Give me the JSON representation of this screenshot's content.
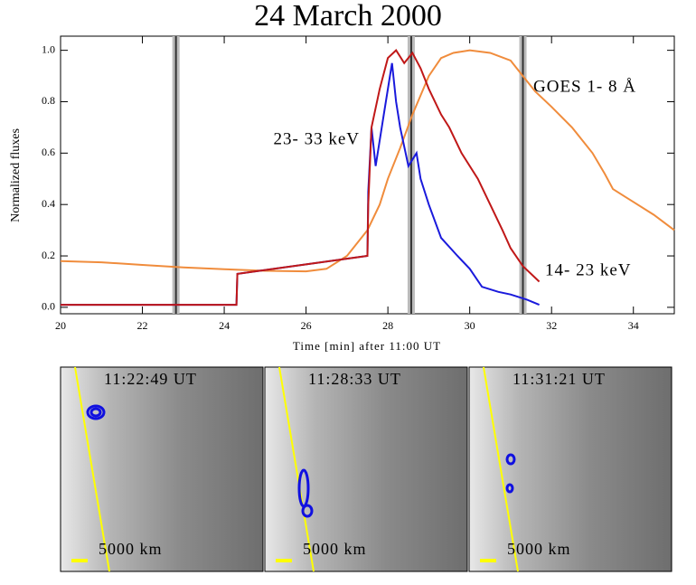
{
  "chart_data": {
    "type": "line",
    "title": "24 March 2000",
    "ylabel": "Normalized fluxes",
    "xlabel": "Time [min] after 11:00 UT",
    "xlim": [
      20,
      35
    ],
    "ylim": [
      -0.025,
      1.055
    ],
    "xticks": [
      20,
      22,
      24,
      26,
      28,
      30,
      32,
      34
    ],
    "yticks": [
      {
        "value": 0,
        "label": "0.0"
      },
      0.2,
      0.4,
      0.6,
      0.8,
      {
        "value": 1,
        "label": "1.0"
      }
    ],
    "markers": [
      22.82,
      28.57,
      31.3
    ],
    "series": [
      {
        "name": "GOES 1- 8 Å",
        "color": "#f08c3c",
        "x": [
          20,
          21,
          22,
          23,
          24,
          25,
          26,
          26.5,
          27,
          27.5,
          27.8,
          28,
          28.3,
          28.6,
          29,
          29.3,
          29.6,
          30,
          30.5,
          31,
          31.3,
          31.6,
          32,
          32.5,
          33,
          33.3,
          33.5,
          33.8,
          34,
          34.5,
          35
        ],
        "values": [
          0.18,
          0.175,
          0.165,
          0.155,
          0.148,
          0.142,
          0.14,
          0.15,
          0.2,
          0.3,
          0.4,
          0.5,
          0.62,
          0.75,
          0.9,
          0.97,
          0.99,
          1.0,
          0.99,
          0.96,
          0.9,
          0.84,
          0.78,
          0.7,
          0.6,
          0.52,
          0.46,
          0.43,
          0.41,
          0.36,
          0.3
        ]
      },
      {
        "name": "23- 33 keV",
        "color": "#1a1adc",
        "x": [
          20,
          24.3,
          24.32,
          27.5,
          27.52,
          27.6,
          27.7,
          27.9,
          28.1,
          28.2,
          28.3,
          28.5,
          28.7,
          28.8,
          29,
          29.3,
          29.7,
          30,
          30.3,
          30.7,
          31,
          31.4,
          31.7
        ],
        "values": [
          0.01,
          0.01,
          0.13,
          0.2,
          0.45,
          0.7,
          0.55,
          0.75,
          0.95,
          0.8,
          0.7,
          0.55,
          0.6,
          0.5,
          0.4,
          0.27,
          0.2,
          0.15,
          0.08,
          0.06,
          0.05,
          0.03,
          0.01
        ]
      },
      {
        "name": "14- 23 keV",
        "color": "#c01818",
        "x": [
          20,
          24.3,
          24.32,
          27.5,
          27.52,
          27.6,
          27.8,
          28,
          28.2,
          28.4,
          28.6,
          28.8,
          29,
          29.3,
          29.5,
          29.8,
          30.2,
          30.5,
          30.8,
          31,
          31.3,
          31.7
        ],
        "values": [
          0.01,
          0.01,
          0.13,
          0.2,
          0.4,
          0.7,
          0.85,
          0.97,
          1.0,
          0.95,
          0.99,
          0.93,
          0.85,
          0.75,
          0.7,
          0.6,
          0.5,
          0.4,
          0.3,
          0.23,
          0.16,
          0.1
        ]
      }
    ],
    "panels": [
      {
        "time": "11:22:49 UT",
        "scale": "5000 km"
      },
      {
        "time": "11:28:33 UT",
        "scale": "5000 km"
      },
      {
        "time": "11:31:21 UT",
        "scale": "5000 km"
      }
    ]
  }
}
